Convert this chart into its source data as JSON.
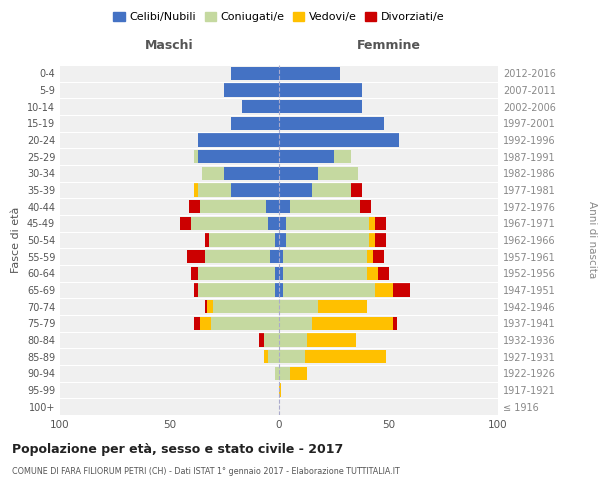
{
  "age_groups": [
    "100+",
    "95-99",
    "90-94",
    "85-89",
    "80-84",
    "75-79",
    "70-74",
    "65-69",
    "60-64",
    "55-59",
    "50-54",
    "45-49",
    "40-44",
    "35-39",
    "30-34",
    "25-29",
    "20-24",
    "15-19",
    "10-14",
    "5-9",
    "0-4"
  ],
  "birth_years": [
    "≤ 1916",
    "1917-1921",
    "1922-1926",
    "1927-1931",
    "1932-1936",
    "1937-1941",
    "1942-1946",
    "1947-1951",
    "1952-1956",
    "1957-1961",
    "1962-1966",
    "1967-1971",
    "1972-1976",
    "1977-1981",
    "1982-1986",
    "1987-1991",
    "1992-1996",
    "1997-2001",
    "2002-2006",
    "2007-2011",
    "2012-2016"
  ],
  "male": {
    "celibi": [
      0,
      0,
      0,
      0,
      0,
      0,
      0,
      2,
      2,
      4,
      2,
      5,
      6,
      22,
      25,
      37,
      37,
      22,
      17,
      25,
      22
    ],
    "coniugati": [
      0,
      0,
      2,
      5,
      7,
      31,
      30,
      35,
      35,
      30,
      30,
      35,
      30,
      15,
      10,
      2,
      0,
      0,
      0,
      0,
      0
    ],
    "vedovi": [
      0,
      0,
      0,
      2,
      0,
      5,
      3,
      0,
      0,
      0,
      0,
      0,
      0,
      2,
      0,
      0,
      0,
      0,
      0,
      0,
      0
    ],
    "divorziati": [
      0,
      0,
      0,
      0,
      2,
      3,
      1,
      2,
      3,
      8,
      2,
      5,
      5,
      0,
      0,
      0,
      0,
      0,
      0,
      0,
      0
    ]
  },
  "female": {
    "nubili": [
      0,
      0,
      0,
      0,
      0,
      0,
      0,
      2,
      2,
      2,
      3,
      3,
      5,
      15,
      18,
      25,
      55,
      48,
      38,
      38,
      28
    ],
    "coniugate": [
      0,
      0,
      5,
      12,
      13,
      15,
      18,
      42,
      38,
      38,
      38,
      38,
      32,
      18,
      18,
      8,
      0,
      0,
      0,
      0,
      0
    ],
    "vedove": [
      0,
      1,
      8,
      37,
      22,
      37,
      22,
      8,
      5,
      3,
      3,
      3,
      0,
      0,
      0,
      0,
      0,
      0,
      0,
      0,
      0
    ],
    "divorziate": [
      0,
      0,
      0,
      0,
      0,
      2,
      0,
      8,
      5,
      5,
      5,
      5,
      5,
      5,
      0,
      0,
      0,
      0,
      0,
      0,
      0
    ]
  },
  "colors": {
    "celibi": "#4472c4",
    "coniugati": "#c5d9a0",
    "vedovi": "#ffc000",
    "divorziati": "#cc0000"
  },
  "title": "Popolazione per età, sesso e stato civile - 2017",
  "subtitle": "COMUNE DI FARA FILIORUM PETRI (CH) - Dati ISTAT 1° gennaio 2017 - Elaborazione TUTTITALIA.IT",
  "xlim": 100,
  "ylabel_left": "Fasce di età",
  "ylabel_right": "Anni di nascita",
  "legend_labels": [
    "Celibi/Nubili",
    "Coniugati/e",
    "Vedovi/e",
    "Divorziati/e"
  ],
  "bg_color": "#f0f0f0",
  "maschi_label": "Maschi",
  "femmine_label": "Femmine"
}
